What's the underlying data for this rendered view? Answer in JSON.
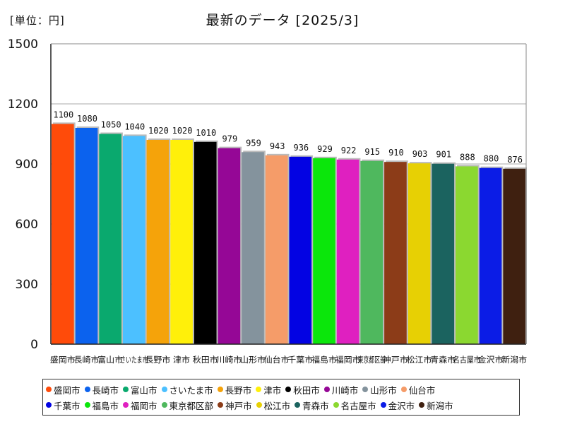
{
  "header": {
    "unit": "[単位：円]",
    "title": "最新のデータ [2025/3]"
  },
  "chart_data": {
    "type": "bar",
    "title": "最新のデータ [2025/3]",
    "ylabel": "[単位：円]",
    "xlabel": "",
    "ylim": [
      0,
      1500
    ],
    "yticks": [
      0,
      300,
      600,
      900,
      1200,
      1500
    ],
    "grid": true,
    "legend_position": "bottom",
    "categories": [
      "盛岡市",
      "長崎市",
      "富山市",
      "さいたま市",
      "長野市",
      "津市",
      "秋田市",
      "川崎市",
      "山形市",
      "仙台市",
      "千葉市",
      "福島市",
      "福岡市",
      "東京都区部",
      "神戸市",
      "松江市",
      "青森市",
      "名古屋市",
      "金沢市",
      "新潟市"
    ],
    "values": [
      1100,
      1080,
      1050,
      1040,
      1020,
      1020,
      1010,
      979,
      959,
      943,
      936,
      929,
      922,
      915,
      910,
      903,
      901,
      888,
      880,
      876
    ],
    "colors": [
      "#ff4b0a",
      "#0b62ee",
      "#0aa96e",
      "#4cc0ff",
      "#f5a30a",
      "#fff00a",
      "#000000",
      "#950796",
      "#84939d",
      "#f59c69",
      "#0303e3",
      "#0be60b",
      "#df20c0",
      "#4fb85e",
      "#8c3c18",
      "#e7d004",
      "#1b635f",
      "#8bd830",
      "#0b1ce6",
      "#3f2010"
    ]
  }
}
